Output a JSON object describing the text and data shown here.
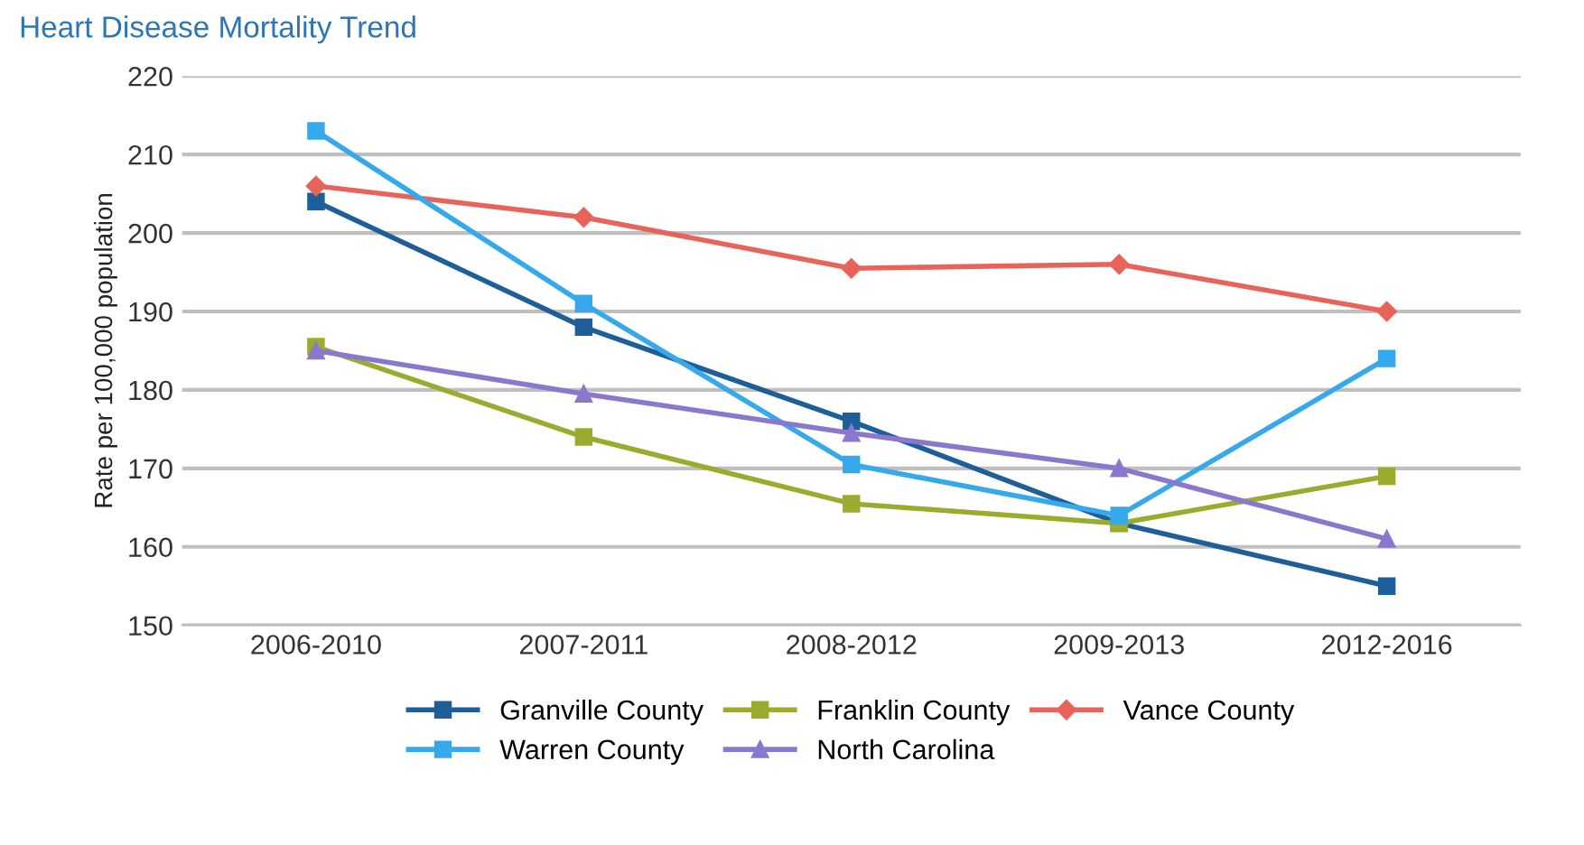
{
  "chart_data": {
    "type": "line",
    "title": "Heart Disease Mortality Trend",
    "ylabel": "Rate per 100,000 population",
    "categories": [
      "2006-2010",
      "2007-2011",
      "2008-2012",
      "2009-2013",
      "2012-2016"
    ],
    "series": [
      {
        "name": "Granville County",
        "color": "#1f5f99",
        "marker": "square",
        "values": [
          204,
          188,
          176,
          163,
          155
        ]
      },
      {
        "name": "Franklin County",
        "color": "#9aab2e",
        "marker": "square",
        "values": [
          185.5,
          174,
          165.5,
          163,
          169
        ]
      },
      {
        "name": "Vance County",
        "color": "#e8645a",
        "marker": "diamond",
        "values": [
          206,
          202,
          195.5,
          196,
          190
        ]
      },
      {
        "name": "Warren County",
        "color": "#35a9ec",
        "marker": "square",
        "values": [
          213,
          191,
          170.5,
          164,
          184
        ]
      },
      {
        "name": "North Carolina",
        "color": "#8a78cf",
        "marker": "triangle",
        "values": [
          185,
          179.5,
          174.5,
          170,
          161
        ]
      }
    ],
    "ylim": [
      150,
      220
    ],
    "yticks": [
      150,
      160,
      170,
      180,
      190,
      200,
      210,
      220
    ],
    "grid": "y",
    "legend": "bottom",
    "line_style": "solid"
  }
}
